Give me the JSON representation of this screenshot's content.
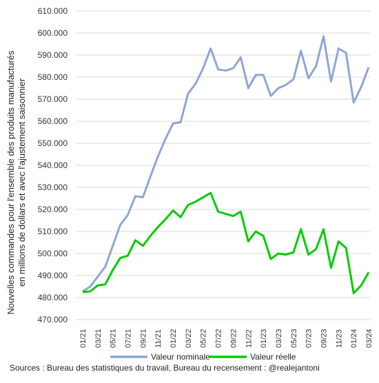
{
  "chart_data": {
    "type": "line",
    "ylabel_line1": "Nouvelles commandes pour l'ensemble des produits manufacturés",
    "ylabel_line2": "en millions de dollars et avec l'ajustement saisonnier",
    "yticks": [
      "470.000",
      "480.000",
      "490.000",
      "500.000",
      "510.000",
      "520.000",
      "530.000",
      "540.000",
      "550.000",
      "560.000",
      "570.000",
      "580.000",
      "590.000",
      "600.000",
      "610.000"
    ],
    "ylim": [
      470000,
      610000
    ],
    "xtick_labels": [
      "01/21",
      "03/21",
      "05/21",
      "07/21",
      "09/21",
      "11/21",
      "01/22",
      "03/22",
      "05/22",
      "07/22",
      "09/22",
      "11/22",
      "01/23",
      "03/23",
      "05/23",
      "07/23",
      "09/23",
      "11/23",
      "01/24",
      "03/24"
    ],
    "x": [
      "01/21",
      "02/21",
      "03/21",
      "04/21",
      "05/21",
      "06/21",
      "07/21",
      "08/21",
      "09/21",
      "10/21",
      "11/21",
      "12/21",
      "01/22",
      "02/22",
      "03/22",
      "04/22",
      "05/22",
      "06/22",
      "07/22",
      "08/22",
      "09/22",
      "10/22",
      "11/22",
      "12/22",
      "01/23",
      "02/23",
      "03/23",
      "04/23",
      "05/23",
      "06/23",
      "07/23",
      "08/23",
      "09/23",
      "10/23",
      "11/23",
      "12/23",
      "01/24",
      "02/24",
      "03/24"
    ],
    "series": [
      {
        "name": "Valeur nominale",
        "color": "#8ea6d4",
        "values": [
          482800,
          485000,
          489500,
          494000,
          503500,
          513000,
          517500,
          526000,
          525500,
          535000,
          544000,
          552000,
          559000,
          559500,
          572500,
          577000,
          584000,
          593000,
          583500,
          583000,
          584000,
          589000,
          575000,
          581000,
          581000,
          571500,
          575000,
          576500,
          579000,
          592000,
          579500,
          585000,
          598500,
          578000,
          593000,
          591000,
          568500,
          575500,
          584500
        ]
      },
      {
        "name": "Valeur réelle",
        "color": "#00cc00",
        "values": [
          482500,
          482800,
          485500,
          486000,
          492500,
          498000,
          499000,
          506000,
          503500,
          508000,
          512000,
          515500,
          519500,
          516500,
          522000,
          523500,
          525500,
          527500,
          519000,
          518000,
          517000,
          519000,
          505500,
          510000,
          508000,
          497500,
          500000,
          499500,
          500500,
          511000,
          499500,
          502000,
          511000,
          493500,
          505500,
          502500,
          482000,
          485500,
          491500
        ]
      }
    ],
    "legend_position": "bottom",
    "grid": true
  },
  "source_text": "Sources : Bureau des statistiques du travail, Bureau du recensement : @realejantoni"
}
